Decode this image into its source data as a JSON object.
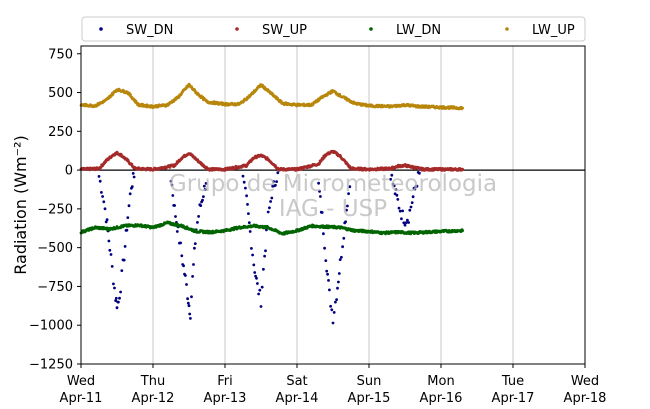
{
  "chart_data": {
    "type": "scatter",
    "ylabel": "Radiation (Wm⁻²)",
    "xlabel": "",
    "title": "",
    "watermark": [
      "Grupo de Micrometeorologia",
      "IAG - USP"
    ],
    "ylim": [
      -1250,
      800
    ],
    "yticks": [
      -1250,
      -1000,
      -750,
      -500,
      -250,
      0,
      250,
      500,
      750
    ],
    "ytick_labels": [
      "−1250",
      "−1000",
      "−750",
      "−500",
      "−250",
      "0",
      "250",
      "500",
      "750"
    ],
    "xlim": [
      0,
      7
    ],
    "xticks": [
      {
        "x": 0,
        "day": "Wed",
        "date": "Apr-11"
      },
      {
        "x": 1,
        "day": "Thu",
        "date": "Apr-12"
      },
      {
        "x": 2,
        "day": "Fri",
        "date": "Apr-13"
      },
      {
        "x": 3,
        "day": "Sat",
        "date": "Apr-14"
      },
      {
        "x": 4,
        "day": "Sun",
        "date": "Apr-15"
      },
      {
        "x": 5,
        "day": "Mon",
        "date": "Apr-16"
      },
      {
        "x": 6,
        "day": "Tue",
        "date": "Apr-17"
      },
      {
        "x": 7,
        "day": "Wed",
        "date": "Apr-18"
      }
    ],
    "grid": "vertical",
    "zero_line": true,
    "legend_position": "top",
    "series": [
      {
        "name": "SW_DN",
        "color": "#00007f",
        "points": [
          [
            0.25,
            -40
          ],
          [
            0.3,
            -150
          ],
          [
            0.35,
            -300
          ],
          [
            0.4,
            -500
          ],
          [
            0.45,
            -700
          ],
          [
            0.48,
            -820
          ],
          [
            0.5,
            -860
          ],
          [
            0.52,
            -850
          ],
          [
            0.55,
            -750
          ],
          [
            0.6,
            -550
          ],
          [
            0.65,
            -300
          ],
          [
            0.7,
            -100
          ],
          [
            0.75,
            -20
          ],
          [
            1.25,
            -50
          ],
          [
            1.3,
            -250
          ],
          [
            1.35,
            -400
          ],
          [
            1.4,
            -550
          ],
          [
            1.45,
            -700
          ],
          [
            1.48,
            -800
          ],
          [
            1.5,
            -870
          ],
          [
            1.52,
            -920
          ],
          [
            1.55,
            -700
          ],
          [
            1.6,
            -380
          ],
          [
            1.65,
            -250
          ],
          [
            1.7,
            -150
          ],
          [
            1.75,
            -40
          ],
          [
            2.25,
            -60
          ],
          [
            2.3,
            -200
          ],
          [
            2.35,
            -400
          ],
          [
            2.4,
            -600
          ],
          [
            2.45,
            -750
          ],
          [
            2.5,
            -840
          ],
          [
            2.55,
            -550
          ],
          [
            2.6,
            -300
          ],
          [
            2.65,
            -150
          ],
          [
            2.7,
            -60
          ],
          [
            2.75,
            -20
          ],
          [
            3.3,
            -100
          ],
          [
            3.35,
            -300
          ],
          [
            3.4,
            -550
          ],
          [
            3.45,
            -800
          ],
          [
            3.5,
            -950
          ],
          [
            3.55,
            -800
          ],
          [
            3.6,
            -600
          ],
          [
            3.65,
            -400
          ],
          [
            3.7,
            -200
          ],
          [
            3.75,
            -50
          ],
          [
            4.3,
            -20
          ],
          [
            4.35,
            -120
          ],
          [
            4.4,
            -200
          ],
          [
            4.45,
            -280
          ],
          [
            4.5,
            -320
          ],
          [
            4.55,
            -300
          ],
          [
            4.6,
            -200
          ],
          [
            4.65,
            -100
          ],
          [
            4.7,
            -20
          ]
        ]
      },
      {
        "name": "SW_UP",
        "color": "#a52a2a",
        "points": [
          [
            0,
            5
          ],
          [
            0.25,
            10
          ],
          [
            0.35,
            60
          ],
          [
            0.45,
            100
          ],
          [
            0.5,
            110
          ],
          [
            0.55,
            100
          ],
          [
            0.65,
            60
          ],
          [
            0.75,
            10
          ],
          [
            1.0,
            5
          ],
          [
            1.3,
            30
          ],
          [
            1.4,
            80
          ],
          [
            1.5,
            110
          ],
          [
            1.6,
            70
          ],
          [
            1.7,
            30
          ],
          [
            1.78,
            5
          ],
          [
            2.0,
            5
          ],
          [
            2.3,
            30
          ],
          [
            2.4,
            80
          ],
          [
            2.5,
            95
          ],
          [
            2.6,
            70
          ],
          [
            2.75,
            5
          ],
          [
            3.0,
            5
          ],
          [
            3.3,
            40
          ],
          [
            3.4,
            100
          ],
          [
            3.5,
            120
          ],
          [
            3.6,
            90
          ],
          [
            3.75,
            10
          ],
          [
            4.0,
            5
          ],
          [
            4.3,
            10
          ],
          [
            4.4,
            25
          ],
          [
            4.5,
            30
          ],
          [
            4.6,
            20
          ],
          [
            4.75,
            5
          ],
          [
            5.0,
            5
          ],
          [
            5.3,
            5
          ]
        ]
      },
      {
        "name": "LW_DN",
        "color": "#006400",
        "points": [
          [
            0,
            -400
          ],
          [
            0.2,
            -370
          ],
          [
            0.4,
            -380
          ],
          [
            0.6,
            -360
          ],
          [
            0.8,
            -355
          ],
          [
            1.0,
            -370
          ],
          [
            1.2,
            -340
          ],
          [
            1.4,
            -360
          ],
          [
            1.6,
            -395
          ],
          [
            1.8,
            -400
          ],
          [
            2.0,
            -390
          ],
          [
            2.2,
            -370
          ],
          [
            2.4,
            -360
          ],
          [
            2.6,
            -370
          ],
          [
            2.8,
            -410
          ],
          [
            3.0,
            -390
          ],
          [
            3.2,
            -360
          ],
          [
            3.4,
            -365
          ],
          [
            3.6,
            -370
          ],
          [
            3.8,
            -390
          ],
          [
            4.0,
            -395
          ],
          [
            4.2,
            -405
          ],
          [
            4.4,
            -400
          ],
          [
            4.6,
            -405
          ],
          [
            4.8,
            -400
          ],
          [
            5.0,
            -395
          ],
          [
            5.3,
            -390
          ]
        ]
      },
      {
        "name": "LW_UP",
        "color": "#b8860b",
        "points": [
          [
            0,
            420
          ],
          [
            0.2,
            415
          ],
          [
            0.35,
            450
          ],
          [
            0.5,
            520
          ],
          [
            0.65,
            500
          ],
          [
            0.8,
            420
          ],
          [
            1.0,
            410
          ],
          [
            1.2,
            420
          ],
          [
            1.35,
            470
          ],
          [
            1.5,
            550
          ],
          [
            1.6,
            500
          ],
          [
            1.75,
            440
          ],
          [
            2.0,
            425
          ],
          [
            2.2,
            425
          ],
          [
            2.35,
            480
          ],
          [
            2.5,
            550
          ],
          [
            2.6,
            510
          ],
          [
            2.8,
            430
          ],
          [
            3.0,
            420
          ],
          [
            3.2,
            420
          ],
          [
            3.35,
            470
          ],
          [
            3.5,
            510
          ],
          [
            3.6,
            480
          ],
          [
            3.8,
            430
          ],
          [
            4.0,
            415
          ],
          [
            4.3,
            410
          ],
          [
            4.5,
            420
          ],
          [
            4.7,
            410
          ],
          [
            5.0,
            405
          ],
          [
            5.3,
            400
          ]
        ]
      }
    ]
  }
}
